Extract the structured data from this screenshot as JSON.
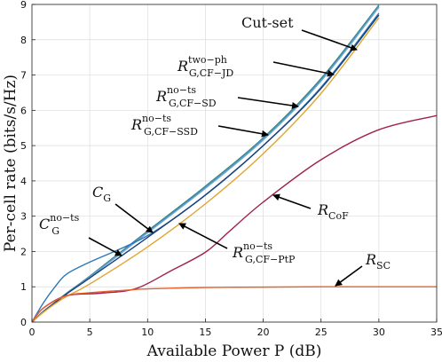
{
  "chart_data": {
    "type": "line",
    "xlabel": "Available Power P (dB)",
    "ylabel": "Per-cell rate (bits/s/Hz)",
    "xlim": [
      0,
      35
    ],
    "ylim": [
      0,
      9
    ],
    "xticks": [
      0,
      5,
      10,
      15,
      20,
      25,
      30,
      35
    ],
    "yticks": [
      0,
      1,
      2,
      3,
      4,
      5,
      6,
      7,
      8,
      9
    ],
    "grid": true,
    "series": [
      {
        "name": "Cut-set",
        "color": "#2f7d8c",
        "x": [
          0,
          1,
          2,
          3,
          5,
          10,
          15,
          20,
          25,
          30
        ],
        "y": [
          0,
          0.3,
          0.56,
          0.82,
          1.3,
          2.58,
          3.85,
          5.22,
          6.9,
          8.98
        ]
      },
      {
        "name": "R_G,CF-JD two-ph",
        "color": "#5aa898",
        "x": [
          0,
          1,
          2,
          3,
          5,
          10,
          15,
          20,
          25,
          30
        ],
        "y": [
          0,
          0.3,
          0.55,
          0.8,
          1.28,
          2.55,
          3.82,
          5.19,
          6.86,
          8.95
        ]
      },
      {
        "name": "R_G,CF-SD no-ts",
        "color": "#3d6fb0",
        "x": [
          0,
          1,
          2,
          3,
          5,
          10,
          15,
          20,
          25,
          30
        ],
        "y": [
          0,
          0.3,
          0.55,
          0.8,
          1.27,
          2.54,
          3.8,
          5.17,
          6.84,
          8.93
        ]
      },
      {
        "name": "R_G,CF-SSD no-ts",
        "color": "#6ba8d8",
        "x": [
          0,
          1,
          2,
          3,
          5,
          10,
          15,
          20,
          25,
          30
        ],
        "y": [
          0,
          0.3,
          0.55,
          0.8,
          1.27,
          2.53,
          3.79,
          5.16,
          6.83,
          8.92
        ]
      },
      {
        "name": "C_G",
        "color": "#2a78b8",
        "x": [
          0,
          1,
          2,
          3,
          5,
          10,
          15,
          20,
          25,
          30
        ],
        "y": [
          0,
          0.55,
          1.0,
          1.36,
          1.7,
          2.45,
          3.6,
          5.0,
          6.65,
          8.75
        ]
      },
      {
        "name": "C_G no-ts",
        "color": "#1a3f7a",
        "x": [
          0,
          1,
          2,
          3,
          5,
          10,
          15,
          20,
          25,
          30
        ],
        "y": [
          0,
          0.3,
          0.55,
          0.8,
          1.25,
          2.4,
          3.6,
          5.0,
          6.62,
          8.7
        ]
      },
      {
        "name": "R_G,CF-PtP no-ts",
        "color": "#e0a530",
        "x": [
          0,
          1,
          2,
          3,
          5,
          10,
          15,
          20,
          25,
          30
        ],
        "y": [
          0,
          0.28,
          0.52,
          0.73,
          1.08,
          2.13,
          3.35,
          4.77,
          6.48,
          8.62
        ]
      },
      {
        "name": "R_CoF",
        "color": "#a02050",
        "x": [
          0,
          1,
          3,
          6,
          9,
          12,
          15,
          17,
          20,
          25,
          30,
          35
        ],
        "y": [
          0,
          0.4,
          0.75,
          0.82,
          0.95,
          1.45,
          1.98,
          2.55,
          3.4,
          4.6,
          5.45,
          5.85
        ]
      },
      {
        "name": "R_SC",
        "color": "#e8602a",
        "x": [
          0,
          1,
          3,
          5,
          8,
          10,
          15,
          20,
          25,
          30,
          35
        ],
        "y": [
          0,
          0.4,
          0.75,
          0.83,
          0.9,
          0.94,
          0.98,
          0.99,
          1.0,
          1.0,
          1.0
        ]
      }
    ],
    "annotations": {
      "cutset": "Cut-set",
      "jd": {
        "main": "R",
        "sub": "G,CF−JD",
        "sup": "two−ph"
      },
      "sd": {
        "main": "R",
        "sub": "G,CF−SD",
        "sup": "no−ts"
      },
      "ssd": {
        "main": "R",
        "sub": "G,CF−SSD",
        "sup": "no−ts"
      },
      "cg": {
        "main": "C",
        "sub": "G"
      },
      "cgnots": {
        "main": "C",
        "sub": "G",
        "sup": "no−ts"
      },
      "ptp": {
        "main": "R",
        "sub": "G,CF−PtP",
        "sup": "no−ts"
      },
      "cof": {
        "main": "R",
        "sub": "CoF"
      },
      "sc": {
        "main": "R",
        "sub": "SC"
      }
    }
  }
}
